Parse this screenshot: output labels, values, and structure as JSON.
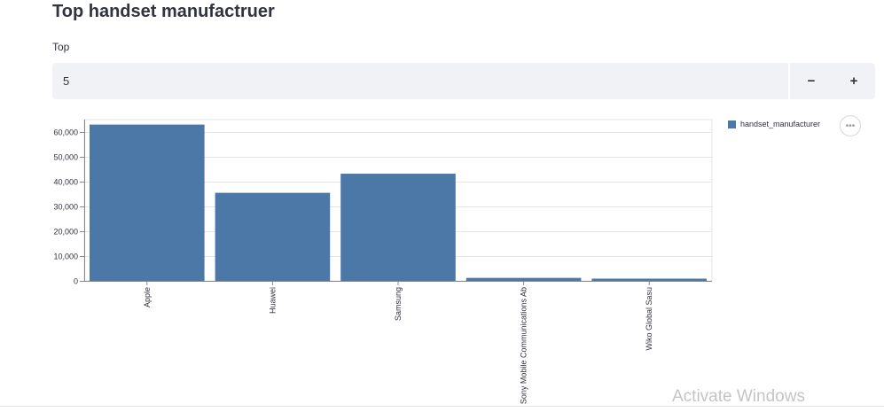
{
  "page": {
    "title": "Top handset manufactruer"
  },
  "top_input": {
    "label": "Top",
    "value": "5",
    "decrement_label": "−",
    "increment_label": "+"
  },
  "legend": {
    "label": "handset_manufacturer",
    "color": "#4c78a8"
  },
  "menu": {
    "icon": "ellipsis-icon",
    "glyph": "•••"
  },
  "watermark": {
    "text": "Activate Windows"
  },
  "chart_data": {
    "type": "bar",
    "categories": [
      "Apple",
      "Huawei",
      "Samsung",
      "Sony Mobile Communications Ab",
      "Wiko Global Sasu"
    ],
    "values": [
      63000,
      35500,
      43200,
      1200,
      900
    ],
    "ylim": [
      0,
      65000
    ],
    "yticks": [
      0,
      10000,
      20000,
      30000,
      40000,
      50000,
      60000
    ],
    "ytick_labels": [
      "0",
      "10,000",
      "20,000",
      "30,000",
      "40,000",
      "50,000",
      "60,000"
    ],
    "grid": true,
    "bar_color": "#4c78a8",
    "legend_position": "top-right"
  }
}
